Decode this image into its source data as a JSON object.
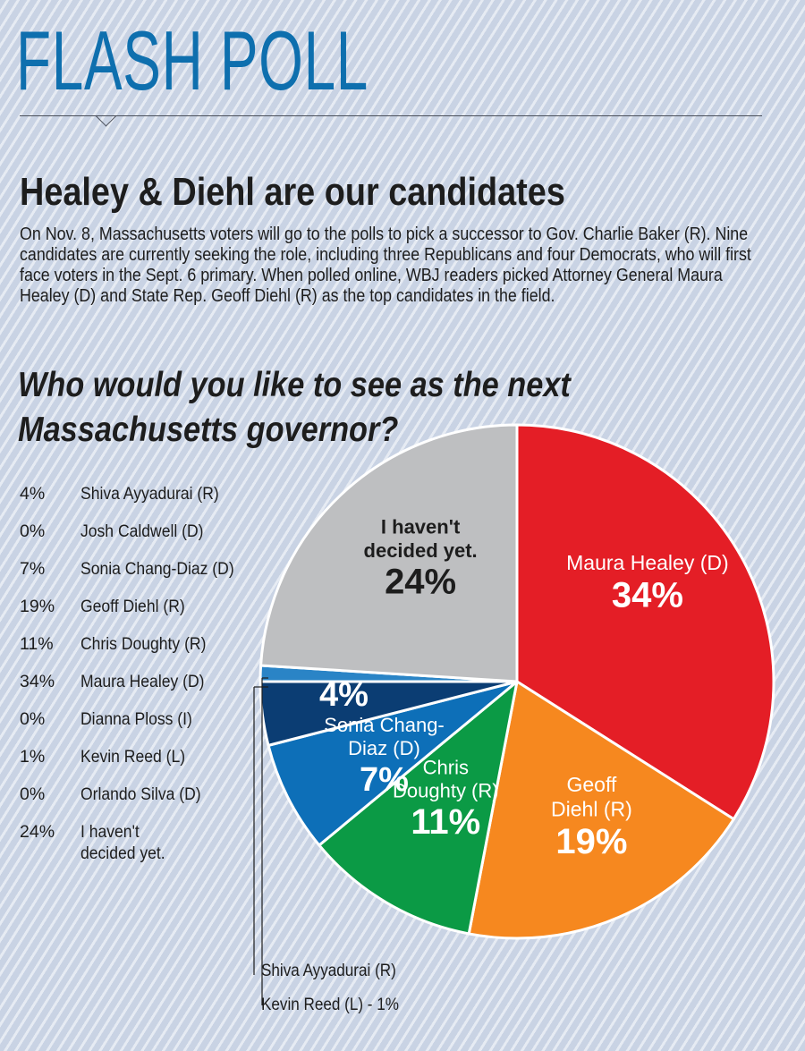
{
  "masthead": "FLASH POLL",
  "headline": "Healey & Diehl are our candidates",
  "intro": "On Nov. 8, Massachusetts voters will go to the polls to pick a successor to Gov. Charlie Baker (R). Nine candidates are currently seeking the role, including three Republicans and four Democrats, who will first face voters in the Sept. 6 primary. When polled online, WBJ readers picked Attorney General Maura Healey (D) and State Rep. Geoff Diehl (R) as the top candidates in the field.",
  "results": [
    {
      "pct": "4%",
      "name": "Shiva Ayyadurai (R)"
    },
    {
      "pct": "0%",
      "name": "Josh Caldwell (D)"
    },
    {
      "pct": "7%",
      "name": "Sonia Chang-Diaz (D)"
    },
    {
      "pct": "19%",
      "name": "Geoff Diehl (R)"
    },
    {
      "pct": "11%",
      "name": "Chris Doughty (R)"
    },
    {
      "pct": "34%",
      "name": "Maura Healey (D)"
    },
    {
      "pct": "0%",
      "name": "Dianna Ploss (I)"
    },
    {
      "pct": "1%",
      "name": "Kevin Reed (L)"
    },
    {
      "pct": "0%",
      "name": "Orlando Silva (D)"
    },
    {
      "pct": "24%",
      "name": "I haven't decided yet."
    }
  ],
  "callouts": {
    "ayyadurai": "Shiva Ayyadurai (R)",
    "reed": "Kevin Reed (L) - 1%"
  },
  "chart_data": {
    "type": "pie",
    "title": "Who would you like to see as the next Massachusetts governor?",
    "slices": [
      {
        "label": "Maura Healey (D)",
        "value": 34,
        "value_label": "34%",
        "color": "#e41e26"
      },
      {
        "label": "Geoff Diehl (R)",
        "value": 19,
        "value_label": "19%",
        "color": "#f6881f"
      },
      {
        "label": "Chris Doughty (R)",
        "value": 11,
        "value_label": "11%",
        "color": "#0b9a45"
      },
      {
        "label": "Sonia Chang-Diaz (D)",
        "value": 7,
        "value_label": "7%",
        "color": "#0d6fb8"
      },
      {
        "label": "Shiva Ayyadurai (R)",
        "value": 4,
        "value_label": "4%",
        "color": "#0b3d73"
      },
      {
        "label": "Kevin Reed (L)",
        "value": 1,
        "value_label": "",
        "color": "#2a84c6"
      },
      {
        "label": "I haven't decided yet.",
        "value": 24,
        "value_label": "24%",
        "color": "#bebfc1"
      }
    ],
    "slice_text": {
      "Maura Healey (D)": [
        "Maura Healey (D)"
      ],
      "Geoff Diehl (R)": [
        "Geoff",
        "Diehl (R)"
      ],
      "Chris Doughty (R)": [
        "Chris",
        "Doughty (R)"
      ],
      "Sonia Chang-Diaz (D)": [
        "Sonia Chang-",
        "Diaz (D)"
      ],
      "I haven't decided yet.": [
        "I haven't",
        "decided yet."
      ]
    }
  }
}
